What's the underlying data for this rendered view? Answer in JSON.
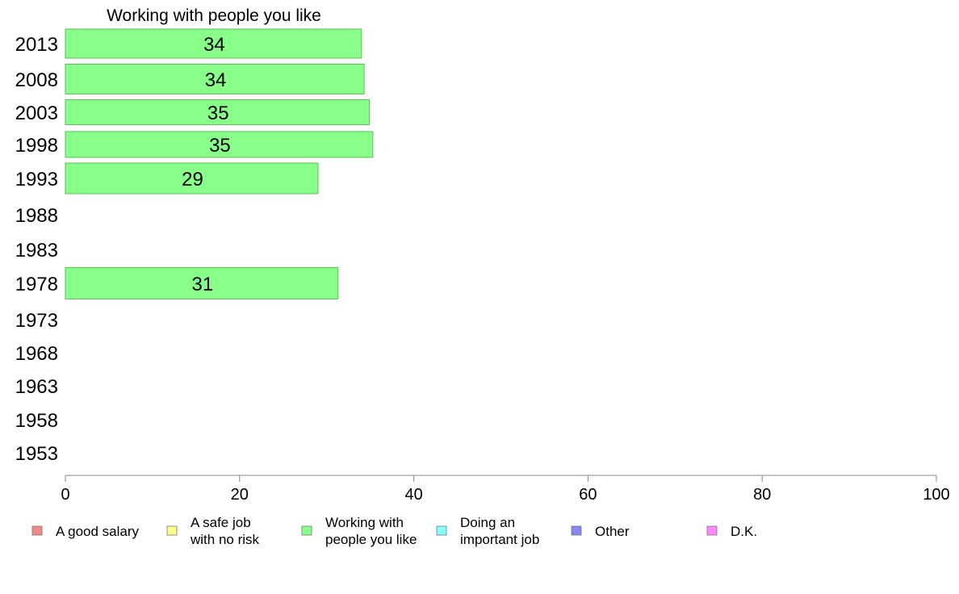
{
  "chart_data": {
    "type": "bar",
    "orientation": "horizontal",
    "title": "Working with people you like",
    "categories": [
      "2013",
      "2008",
      "2003",
      "1998",
      "1993",
      "1988",
      "1983",
      "1978",
      "1973",
      "1968",
      "1963",
      "1958",
      "1953"
    ],
    "series": [
      {
        "name": "Working with people you like",
        "color": "#88ff88",
        "values": [
          34,
          34.3,
          34.9,
          35.3,
          29,
          null,
          null,
          31.3,
          null,
          null,
          null,
          null,
          null
        ],
        "labels": [
          "34",
          "34",
          "35",
          "35",
          "29",
          "",
          "",
          "31",
          "",
          "",
          "",
          "",
          ""
        ]
      }
    ],
    "xlim": [
      0,
      100
    ],
    "xticks": [
      0,
      20,
      40,
      60,
      80,
      100
    ],
    "xlabel": "",
    "ylabel": "",
    "grid": false,
    "legend_position": "bottom",
    "legend": [
      {
        "label": [
          "A good salary"
        ],
        "color": "#f08a8a"
      },
      {
        "label": [
          "A safe job",
          "with no risk"
        ],
        "color": "#ffff88"
      },
      {
        "label": [
          "Working with",
          "people you like"
        ],
        "color": "#88ff88"
      },
      {
        "label": [
          "Doing an",
          "important job"
        ],
        "color": "#88ffff"
      },
      {
        "label": [
          "Other"
        ],
        "color": "#8888f0"
      },
      {
        "label": [
          "D.K."
        ],
        "color": "#ff88ff"
      }
    ]
  }
}
